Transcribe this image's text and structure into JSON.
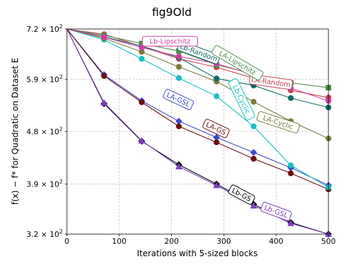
{
  "chart_data": {
    "type": "line",
    "title": "fig9Old",
    "xlabel": "Iterations with 5-sized blocks",
    "ylabel": "f(x) − f* for Quadratic on Dataset E",
    "y_scale": "log",
    "xlim": [
      0,
      500
    ],
    "ylim": [
      320,
      720
    ],
    "x_ticks": [
      0,
      100,
      200,
      300,
      400,
      500
    ],
    "y_ticks": [
      {
        "value": 720,
        "mantissa": "7.2",
        "exp": "2"
      },
      {
        "value": 590,
        "mantissa": "5.9",
        "exp": "2"
      },
      {
        "value": 480,
        "mantissa": "4.8",
        "exp": "2"
      },
      {
        "value": 390,
        "mantissa": "3.9",
        "exp": "2"
      },
      {
        "value": 320,
        "mantissa": "3.2",
        "exp": "2"
      }
    ],
    "grid": true,
    "series": [
      {
        "name": "Lb-GS",
        "color": "#000000",
        "marker": "diamond",
        "label_angle": 28,
        "label_at": {
          "x": 334,
          "y": 374
        },
        "points": [
          [
            0,
            720
          ],
          [
            71,
            536
          ],
          [
            143,
            462
          ],
          [
            214,
            421
          ],
          [
            286,
            390
          ],
          [
            357,
            360
          ],
          [
            428,
            335
          ],
          [
            500,
            320
          ]
        ]
      },
      {
        "name": "Lb-GSL",
        "color": "#7b3fbf",
        "marker": "triangle",
        "label_angle": 20,
        "label_at": {
          "x": 400,
          "y": 350
        },
        "points": [
          [
            0,
            720
          ],
          [
            71,
            538
          ],
          [
            143,
            463
          ],
          [
            214,
            418
          ],
          [
            286,
            388
          ],
          [
            357,
            358
          ],
          [
            428,
            334
          ],
          [
            500,
            320
          ]
        ]
      },
      {
        "name": "LA-GSL",
        "color": "#3b4bc8",
        "marker": "diamond",
        "label_angle": 25,
        "label_at": {
          "x": 213,
          "y": 545
        },
        "points": [
          [
            0,
            720
          ],
          [
            71,
            601
          ],
          [
            143,
            542
          ],
          [
            214,
            500
          ],
          [
            286,
            469
          ],
          [
            357,
            442
          ],
          [
            428,
            416
          ],
          [
            500,
            388
          ]
        ]
      },
      {
        "name": "LA-GS",
        "color": "#6b0f0f",
        "marker": "circle",
        "label_angle": 25,
        "label_at": {
          "x": 285,
          "y": 486
        },
        "points": [
          [
            0,
            720
          ],
          [
            71,
            598
          ],
          [
            143,
            539
          ],
          [
            214,
            490
          ],
          [
            286,
            460
          ],
          [
            357,
            431
          ],
          [
            428,
            407
          ],
          [
            500,
            382
          ]
        ]
      },
      {
        "name": "Lb-Cyclic",
        "color": "#17bfc2",
        "marker": "circle",
        "label_angle": 64,
        "label_at": {
          "x": 334,
          "y": 545
        },
        "points": [
          [
            0,
            720
          ],
          [
            71,
            690
          ],
          [
            143,
            640
          ],
          [
            214,
            593
          ],
          [
            286,
            552
          ],
          [
            357,
            490
          ],
          [
            428,
            420
          ],
          [
            500,
            385
          ]
        ]
      },
      {
        "name": "LA-Cyclic",
        "color": "#7a7a3c",
        "marker": "circle",
        "label_angle": 18,
        "label_at": {
          "x": 404,
          "y": 498
        },
        "points": [
          [
            0,
            720
          ],
          [
            71,
            694
          ],
          [
            143,
            658
          ],
          [
            214,
            620
          ],
          [
            286,
            585
          ],
          [
            357,
            540
          ],
          [
            428,
            500
          ],
          [
            500,
            467
          ]
        ]
      },
      {
        "name": "LA-Random",
        "color": "#c83f52",
        "marker": "circle",
        "label_angle": 8,
        "label_at": {
          "x": 390,
          "y": 584
        },
        "points": [
          [
            0,
            720
          ],
          [
            71,
            705
          ],
          [
            143,
            672
          ],
          [
            214,
            640
          ],
          [
            286,
            619
          ],
          [
            357,
            593
          ],
          [
            428,
            565
          ],
          [
            500,
            549
          ]
        ]
      },
      {
        "name": "Lb-Random",
        "color": "#0f6b66",
        "marker": "circle",
        "label_angle": 20,
        "label_at": {
          "x": 252,
          "y": 656
        },
        "points": [
          [
            0,
            720
          ],
          [
            71,
            698
          ],
          [
            143,
            673
          ],
          [
            214,
            643
          ],
          [
            286,
            592
          ],
          [
            357,
            576
          ],
          [
            428,
            548
          ],
          [
            500,
            528
          ]
        ]
      },
      {
        "name": "LA-Lipschitz",
        "color": "#4a8f4a",
        "marker": "square",
        "label_angle": 30,
        "label_at": {
          "x": 326,
          "y": 630
        },
        "points": [
          [
            0,
            720
          ],
          [
            71,
            702
          ],
          [
            143,
            680
          ],
          [
            214,
            660
          ],
          [
            286,
            625
          ],
          [
            357,
            603
          ],
          [
            428,
            582
          ],
          [
            500,
            571
          ]
        ]
      },
      {
        "name": "Lb-Lipschitz",
        "color": "#cc3fa4",
        "marker": "circle",
        "label_angle": 0,
        "label_at": {
          "x": 197,
          "y": 686
        },
        "points": [
          [
            0,
            720
          ],
          [
            71,
            697
          ],
          [
            143,
            669
          ],
          [
            214,
            646
          ],
          [
            286,
            628
          ],
          [
            357,
            601
          ],
          [
            428,
            570
          ],
          [
            500,
            542
          ]
        ]
      }
    ]
  }
}
